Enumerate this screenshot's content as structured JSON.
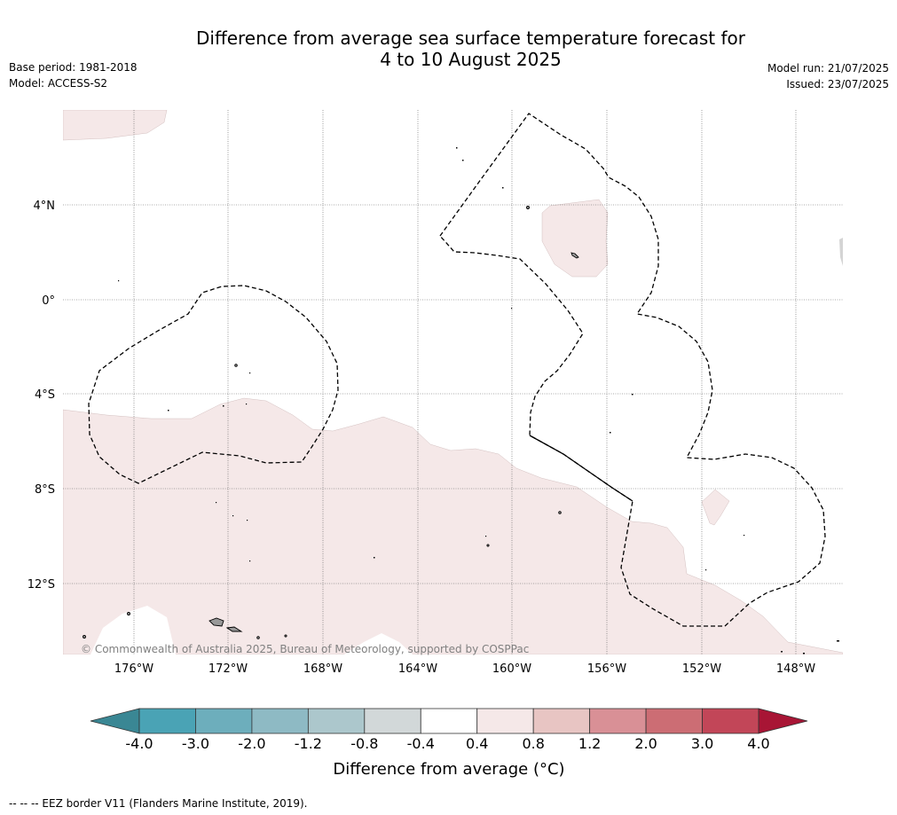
{
  "title": {
    "line1": "Difference from average sea surface temperature forecast for",
    "line2": "4 to 10 August 2025"
  },
  "meta_left": {
    "base_period": "Base period: 1981-2018",
    "model": "Model: ACCESS-S2"
  },
  "meta_right": {
    "model_run": "Model run: 21/07/2025",
    "issued": "Issued: 23/07/2025"
  },
  "map": {
    "lat_labels": [
      "4°N",
      "0°",
      "4°S",
      "8°S",
      "12°S"
    ],
    "lon_labels": [
      "176°W",
      "172°W",
      "168°W",
      "164°W",
      "160°W",
      "156°W",
      "152°W",
      "148°W"
    ],
    "copyright": "© Commonwealth of Australia 2025, Bureau of Meteorology, supported by COSPPac"
  },
  "colorbar": {
    "tick_labels": [
      "-4.0",
      "-3.0",
      "-2.0",
      "-1.2",
      "-0.8",
      "-0.4",
      "0.4",
      "0.8",
      "1.2",
      "2.0",
      "3.0",
      "4.0"
    ],
    "colors": [
      "#4aa3b5",
      "#6daebc",
      "#8ebac4",
      "#acc7cc",
      "#d2d8d9",
      "#ffffff",
      "#f5e8e8",
      "#e8c5c3",
      "#d99096",
      "#cc6d74",
      "#c24658"
    ],
    "under_color": "#3a8794",
    "over_color": "#a81535",
    "title": "Difference from average ($^\\circ$C)",
    "title_display": "Difference from average (°C)"
  },
  "field_color": "#f5e8e8",
  "footnote": "--  --  -- EEZ border V11 (Flanders Marine Institute, 2019)."
}
